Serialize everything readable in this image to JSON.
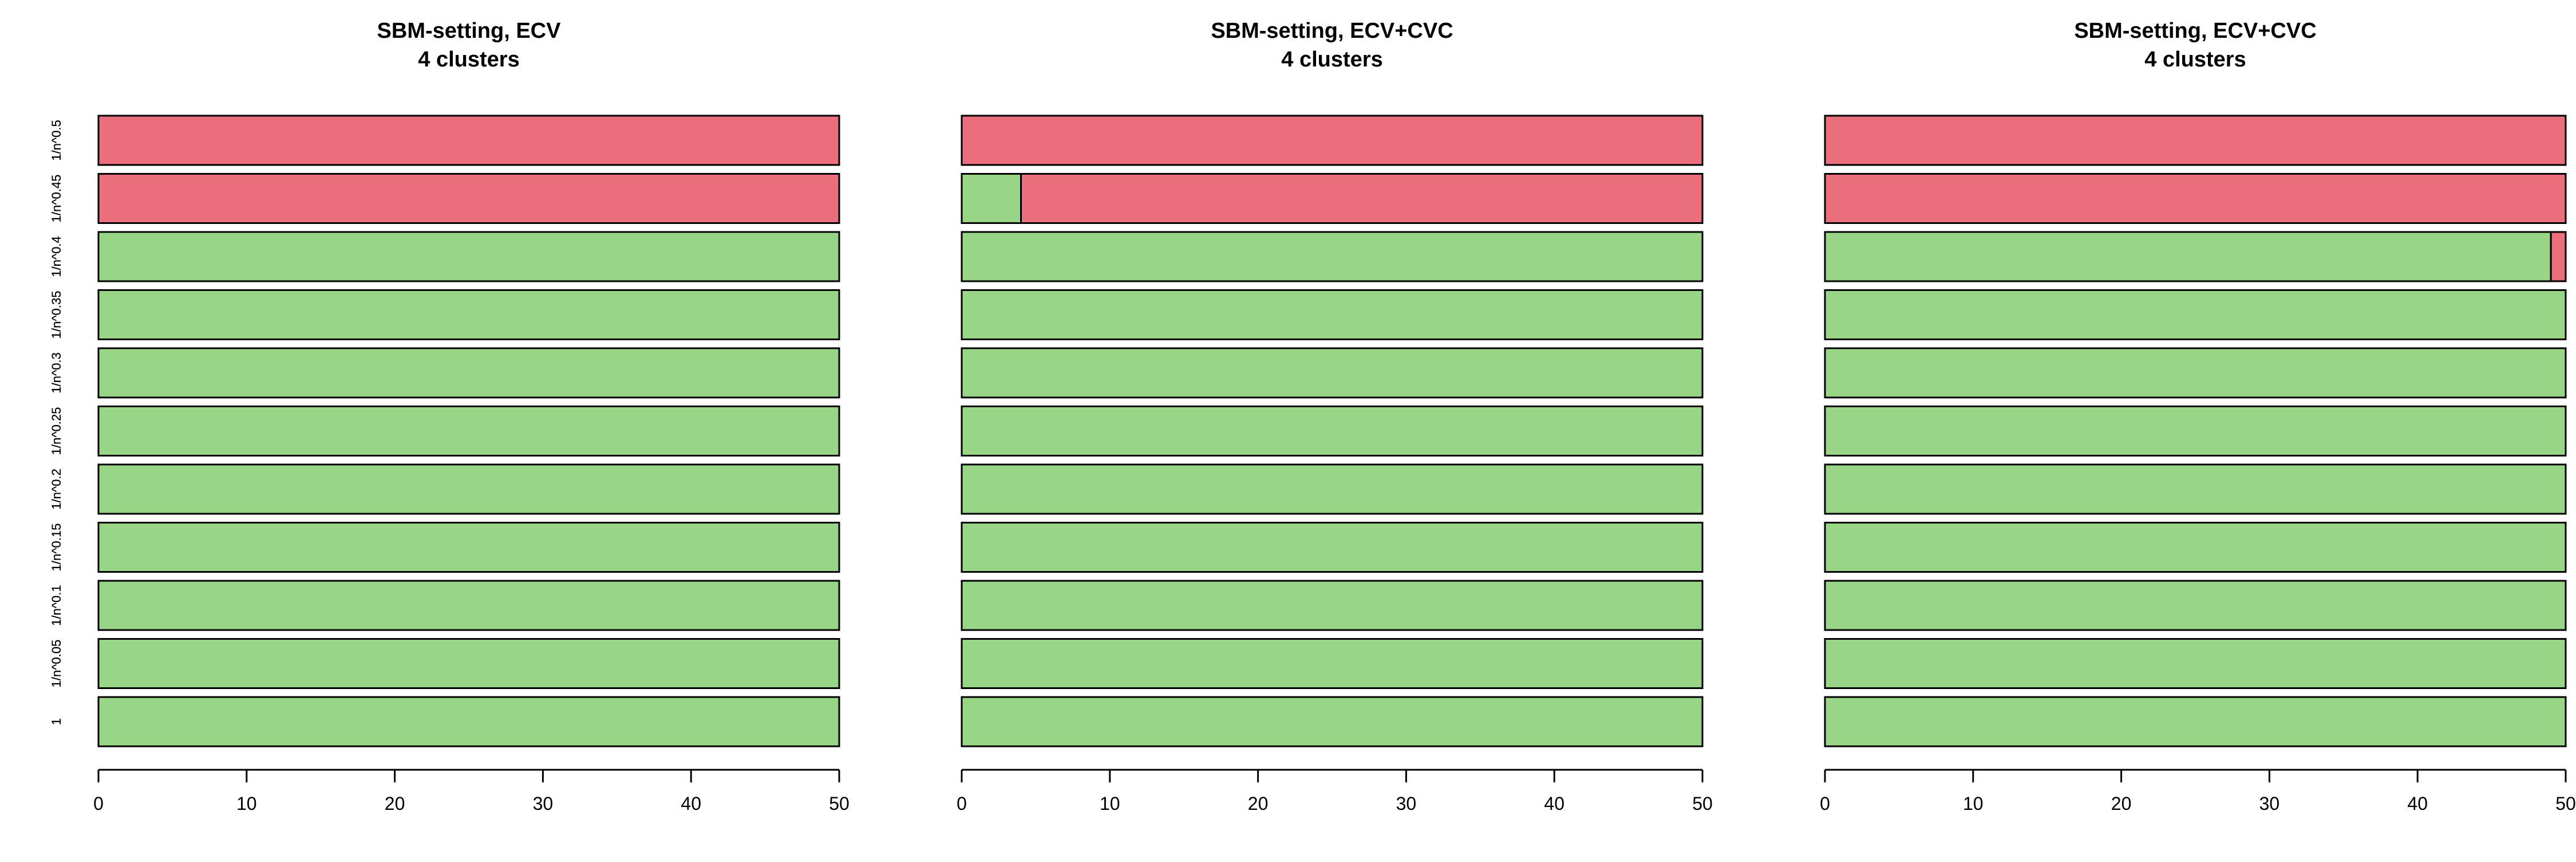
{
  "colors": {
    "green": "#99d587",
    "red": "#ea6e7b"
  },
  "chart_data": [
    {
      "type": "bar",
      "orientation": "horizontal",
      "stacked": true,
      "title": "SBM-setting, ECV",
      "subtitle": "4 clusters",
      "categories": [
        "1",
        "1/n^0.05",
        "1/n^0.1",
        "1/n^0.15",
        "1/n^0.2",
        "1/n^0.25",
        "1/n^0.3",
        "1/n^0.35",
        "1/n^0.4",
        "1/n^0.45",
        "1/n^0.5"
      ],
      "series": [
        {
          "color": "green",
          "values": [
            50,
            50,
            50,
            50,
            50,
            50,
            50,
            50,
            50,
            0,
            0
          ]
        },
        {
          "color": "red",
          "values": [
            0,
            0,
            0,
            0,
            0,
            0,
            0,
            0,
            0,
            50,
            50
          ]
        }
      ],
      "xlim": [
        0,
        50
      ],
      "xticks": [
        "0",
        "10",
        "20",
        "30",
        "40",
        "50"
      ]
    },
    {
      "type": "bar",
      "orientation": "horizontal",
      "stacked": true,
      "title": "SBM-setting, ECV+CVC",
      "subtitle": "4 clusters",
      "categories": [
        "1",
        "1/n^0.05",
        "1/n^0.1",
        "1/n^0.15",
        "1/n^0.2",
        "1/n^0.25",
        "1/n^0.3",
        "1/n^0.35",
        "1/n^0.4",
        "1/n^0.45",
        "1/n^0.5"
      ],
      "series": [
        {
          "color": "green",
          "values": [
            50,
            50,
            50,
            50,
            50,
            50,
            50,
            50,
            50,
            4,
            0
          ]
        },
        {
          "color": "red",
          "values": [
            0,
            0,
            0,
            0,
            0,
            0,
            0,
            0,
            0,
            46,
            50
          ]
        }
      ],
      "xlim": [
        0,
        50
      ],
      "xticks": [
        "0",
        "10",
        "20",
        "30",
        "40",
        "50"
      ]
    },
    {
      "type": "bar",
      "orientation": "horizontal",
      "stacked": true,
      "title": "SBM-setting, ECV+CVC",
      "subtitle": "4 clusters",
      "categories": [
        "1",
        "1/n^0.05",
        "1/n^0.1",
        "1/n^0.15",
        "1/n^0.2",
        "1/n^0.25",
        "1/n^0.3",
        "1/n^0.35",
        "1/n^0.4",
        "1/n^0.45",
        "1/n^0.5"
      ],
      "series": [
        {
          "color": "green",
          "values": [
            50,
            50,
            50,
            50,
            50,
            50,
            50,
            50,
            49,
            0,
            0
          ]
        },
        {
          "color": "red",
          "values": [
            0,
            0,
            0,
            0,
            0,
            0,
            0,
            0,
            1,
            50,
            50
          ]
        }
      ],
      "xlim": [
        0,
        50
      ],
      "xticks": [
        "0",
        "10",
        "20",
        "30",
        "40",
        "50"
      ]
    }
  ]
}
